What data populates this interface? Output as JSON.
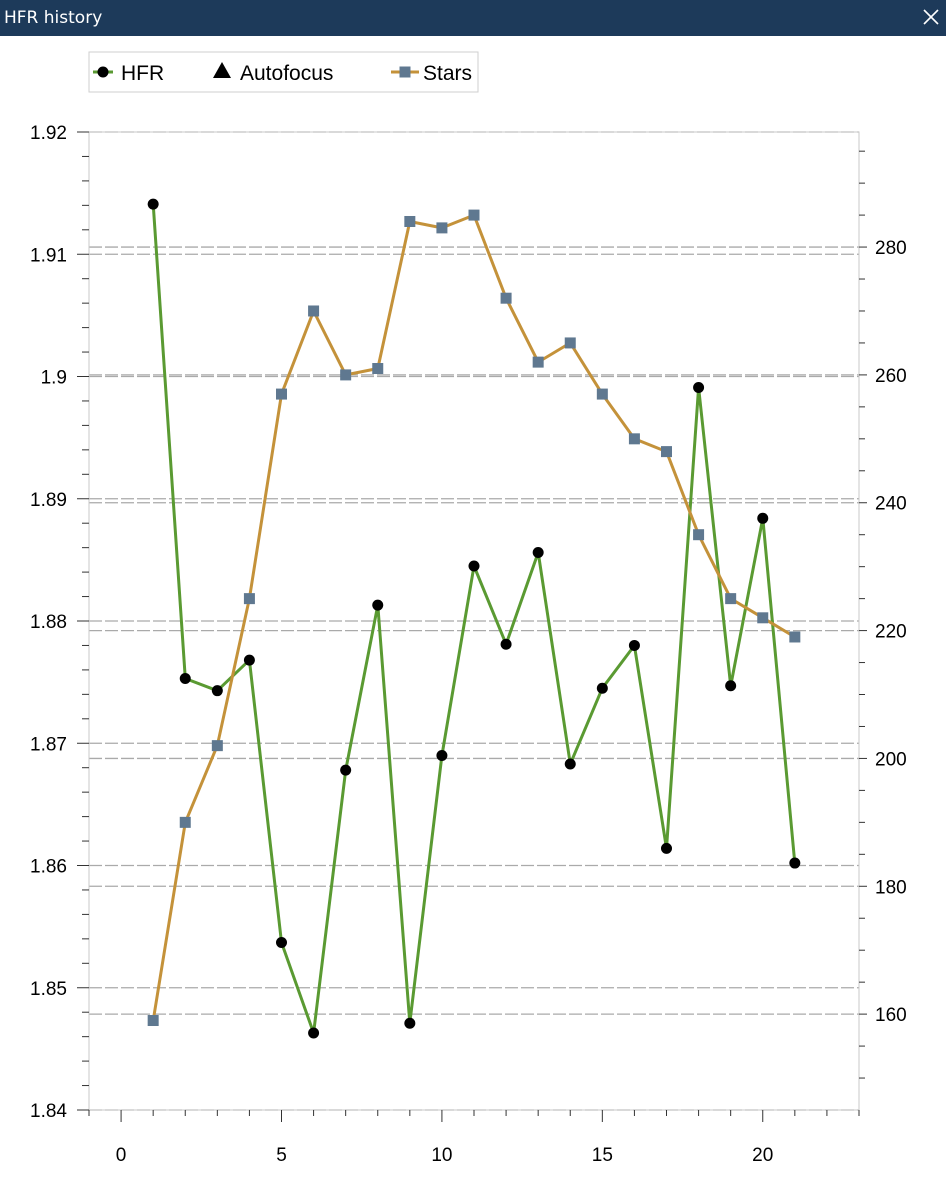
{
  "window": {
    "title": "HFR history",
    "close_icon": "close-icon"
  },
  "legend": {
    "items": [
      {
        "label": "HFR",
        "marker": "circle",
        "color": "#5a9a32"
      },
      {
        "label": "Autofocus",
        "marker": "triangle",
        "color": "#000000"
      },
      {
        "label": "Stars",
        "marker": "square",
        "color": "#c4923a"
      }
    ]
  },
  "chart_data": {
    "type": "line",
    "title": "",
    "xlabel": "",
    "ylabel": "",
    "xlim": [
      -1,
      23
    ],
    "x_ticks": [
      0,
      5,
      10,
      15,
      20
    ],
    "y_left": {
      "lim": [
        1.84,
        1.92
      ],
      "ticks": [
        "1.84",
        "1.85",
        "1.86",
        "1.87",
        "1.88",
        "1.89",
        "1.9",
        "1.91",
        "1.92"
      ]
    },
    "y_right": {
      "lim": [
        145,
        298
      ],
      "ticks": [
        "160",
        "180",
        "200",
        "220",
        "240",
        "260",
        "280"
      ]
    },
    "grid": true,
    "legend_position": "top-left",
    "series": [
      {
        "name": "HFR",
        "axis": "left",
        "color": "#5a9a32",
        "marker_color": "#000000",
        "x": [
          1,
          2,
          3,
          4,
          5,
          6,
          7,
          8,
          9,
          10,
          11,
          12,
          13,
          14,
          15,
          16,
          17,
          18,
          19,
          20,
          21
        ],
        "values": [
          1.9141,
          1.8753,
          1.8743,
          1.8768,
          1.8537,
          1.8463,
          1.8678,
          1.8813,
          1.8471,
          1.869,
          1.8845,
          1.8781,
          1.8856,
          1.8683,
          1.8745,
          1.878,
          1.8614,
          1.8991,
          1.8747,
          1.8884,
          1.8602
        ]
      },
      {
        "name": "Stars",
        "axis": "right",
        "color": "#c4923a",
        "marker_color": "#5f7890",
        "x": [
          1,
          2,
          3,
          4,
          5,
          6,
          7,
          8,
          9,
          10,
          11,
          12,
          13,
          14,
          15,
          16,
          17,
          18,
          19,
          20,
          21
        ],
        "values": [
          159,
          190,
          202,
          225,
          257,
          270,
          260,
          261,
          284,
          283,
          285,
          272,
          262,
          265,
          257,
          250,
          248,
          235,
          225,
          222,
          219
        ]
      }
    ]
  }
}
